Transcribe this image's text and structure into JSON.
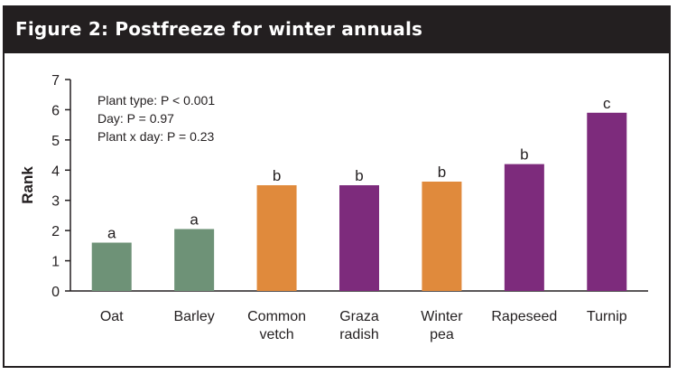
{
  "header": {
    "title": "Figure 2: Postfreeze for winter annuals"
  },
  "colors": {
    "green": "#6e9277",
    "orange": "#e08a3c",
    "purple": "#7d2b7c",
    "dark": "#231f20"
  },
  "chart_data": {
    "type": "bar",
    "title": "Figure 2: Postfreeze for winter annuals",
    "ylabel": "Rank",
    "xlabel": "",
    "ylim": [
      0,
      7
    ],
    "yticks": [
      "0",
      "1",
      "2",
      "3",
      "4",
      "5",
      "6",
      "7"
    ],
    "grid": false,
    "stats": [
      "Plant type: P < 0.001",
      "Day: P = 0.97",
      "Plant x day: P = 0.23"
    ],
    "bars": [
      {
        "category": [
          "Oat"
        ],
        "value": 1.6,
        "letter": "a",
        "color": "#6e9277"
      },
      {
        "category": [
          "Barley"
        ],
        "value": 2.05,
        "letter": "a",
        "color": "#6e9277"
      },
      {
        "category": [
          "Common",
          "vetch"
        ],
        "value": 3.5,
        "letter": "b",
        "color": "#e08a3c"
      },
      {
        "category": [
          "Graza",
          "radish"
        ],
        "value": 3.5,
        "letter": "b",
        "color": "#7d2b7c"
      },
      {
        "category": [
          "Winter",
          "pea"
        ],
        "value": 3.62,
        "letter": "b",
        "color": "#e08a3c"
      },
      {
        "category": [
          "Rapeseed"
        ],
        "value": 4.2,
        "letter": "b",
        "color": "#7d2b7c"
      },
      {
        "category": [
          "Turnip"
        ],
        "value": 5.9,
        "letter": "c",
        "color": "#7d2b7c"
      }
    ]
  }
}
